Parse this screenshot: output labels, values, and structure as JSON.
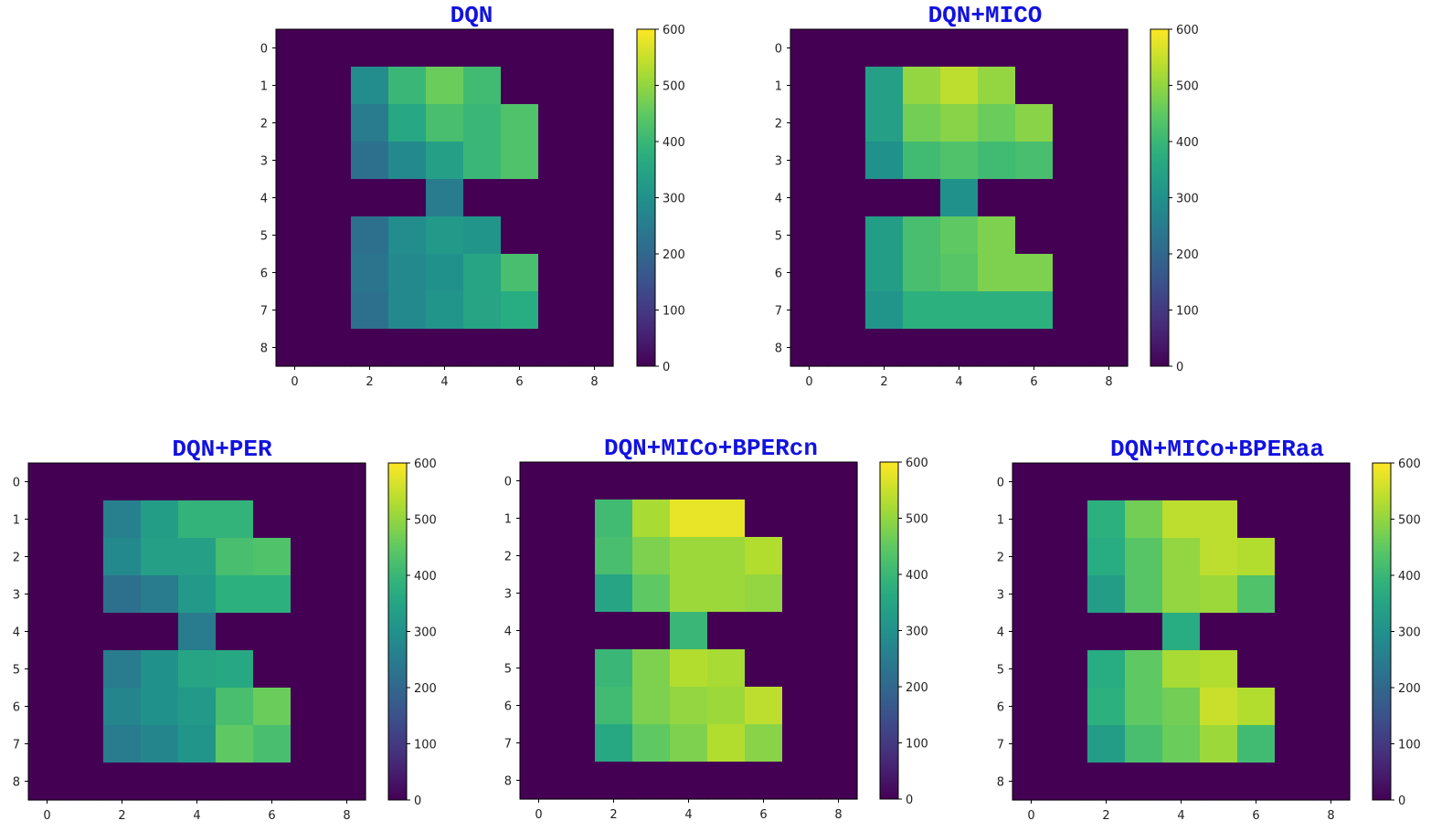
{
  "chart_data": [
    {
      "type": "heatmap",
      "title": "DQN",
      "title_color": "#1212e0",
      "colormap": "viridis",
      "xticks": [
        0,
        2,
        4,
        6,
        8
      ],
      "yticks": [
        0,
        1,
        2,
        3,
        4,
        5,
        6,
        7,
        8
      ],
      "clim": [
        0,
        600
      ],
      "colorbar_ticks": [
        0,
        100,
        200,
        300,
        400,
        500,
        600
      ],
      "values": [
        [
          0,
          0,
          0,
          0,
          0,
          0,
          0,
          0,
          0
        ],
        [
          0,
          0,
          290,
          400,
          460,
          410,
          0,
          0,
          0
        ],
        [
          0,
          0,
          250,
          360,
          420,
          400,
          430,
          0,
          0
        ],
        [
          0,
          0,
          220,
          280,
          340,
          400,
          430,
          0,
          0
        ],
        [
          0,
          0,
          0,
          0,
          250,
          0,
          0,
          0,
          0
        ],
        [
          0,
          0,
          220,
          290,
          320,
          310,
          0,
          0,
          0
        ],
        [
          0,
          0,
          230,
          280,
          300,
          350,
          420,
          0,
          0
        ],
        [
          0,
          0,
          220,
          280,
          310,
          350,
          370,
          0,
          0
        ],
        [
          0,
          0,
          0,
          0,
          0,
          0,
          0,
          0,
          0
        ]
      ]
    },
    {
      "type": "heatmap",
      "title": "DQN+MICO",
      "title_color": "#1212e0",
      "colormap": "viridis",
      "xticks": [
        0,
        2,
        4,
        6,
        8
      ],
      "yticks": [
        0,
        1,
        2,
        3,
        4,
        5,
        6,
        7,
        8
      ],
      "clim": [
        0,
        600
      ],
      "colorbar_ticks": [
        0,
        100,
        200,
        300,
        400,
        500,
        600
      ],
      "values": [
        [
          0,
          0,
          0,
          0,
          0,
          0,
          0,
          0,
          0
        ],
        [
          0,
          0,
          340,
          500,
          540,
          500,
          0,
          0,
          0
        ],
        [
          0,
          0,
          340,
          470,
          490,
          460,
          490,
          0,
          0
        ],
        [
          0,
          0,
          300,
          410,
          430,
          410,
          420,
          0,
          0
        ],
        [
          0,
          0,
          0,
          0,
          300,
          0,
          0,
          0,
          0
        ],
        [
          0,
          0,
          330,
          420,
          450,
          480,
          0,
          0,
          0
        ],
        [
          0,
          0,
          330,
          420,
          440,
          480,
          480,
          0,
          0
        ],
        [
          0,
          0,
          310,
          380,
          380,
          380,
          380,
          0,
          0
        ],
        [
          0,
          0,
          0,
          0,
          0,
          0,
          0,
          0,
          0
        ]
      ]
    },
    {
      "type": "heatmap",
      "title": "DQN+PER",
      "title_color": "#1212e0",
      "colormap": "viridis",
      "xticks": [
        0,
        2,
        4,
        6,
        8
      ],
      "yticks": [
        0,
        1,
        2,
        3,
        4,
        5,
        6,
        7,
        8
      ],
      "clim": [
        0,
        600
      ],
      "colorbar_ticks": [
        0,
        100,
        200,
        300,
        400,
        500,
        600
      ],
      "values": [
        [
          0,
          0,
          0,
          0,
          0,
          0,
          0,
          0,
          0
        ],
        [
          0,
          0,
          260,
          330,
          390,
          390,
          0,
          0,
          0
        ],
        [
          0,
          0,
          280,
          340,
          340,
          420,
          430,
          0,
          0
        ],
        [
          0,
          0,
          220,
          250,
          320,
          380,
          380,
          0,
          0
        ],
        [
          0,
          0,
          0,
          0,
          250,
          0,
          0,
          0,
          0
        ],
        [
          0,
          0,
          250,
          300,
          350,
          360,
          0,
          0,
          0
        ],
        [
          0,
          0,
          270,
          300,
          320,
          420,
          460,
          0,
          0
        ],
        [
          0,
          0,
          250,
          270,
          310,
          450,
          420,
          0,
          0
        ],
        [
          0,
          0,
          0,
          0,
          0,
          0,
          0,
          0,
          0
        ]
      ]
    },
    {
      "type": "heatmap",
      "title": "DQN+MICo+BPERcn",
      "title_color": "#1212e0",
      "colormap": "viridis",
      "xticks": [
        0,
        2,
        4,
        6,
        8
      ],
      "yticks": [
        0,
        1,
        2,
        3,
        4,
        5,
        6,
        7,
        8
      ],
      "clim": [
        0,
        600
      ],
      "colorbar_ticks": [
        0,
        100,
        200,
        300,
        400,
        500,
        600
      ],
      "values": [
        [
          0,
          0,
          0,
          0,
          0,
          0,
          0,
          0,
          0
        ],
        [
          0,
          0,
          410,
          520,
          580,
          580,
          0,
          0,
          0
        ],
        [
          0,
          0,
          420,
          480,
          510,
          510,
          530,
          0,
          0
        ],
        [
          0,
          0,
          350,
          450,
          510,
          510,
          500,
          0,
          0
        ],
        [
          0,
          0,
          0,
          0,
          400,
          0,
          0,
          0,
          0
        ],
        [
          0,
          0,
          400,
          480,
          530,
          520,
          0,
          0,
          0
        ],
        [
          0,
          0,
          410,
          480,
          500,
          510,
          540,
          0,
          0
        ],
        [
          0,
          0,
          360,
          450,
          480,
          530,
          490,
          0,
          0
        ],
        [
          0,
          0,
          0,
          0,
          0,
          0,
          0,
          0,
          0
        ]
      ]
    },
    {
      "type": "heatmap",
      "title": "DQN+MICo+BPERaa",
      "title_color": "#1212e0",
      "colormap": "viridis",
      "xticks": [
        0,
        2,
        4,
        6,
        8
      ],
      "yticks": [
        0,
        1,
        2,
        3,
        4,
        5,
        6,
        7,
        8
      ],
      "clim": [
        0,
        600
      ],
      "colorbar_ticks": [
        0,
        100,
        200,
        300,
        400,
        500,
        600
      ],
      "values": [
        [
          0,
          0,
          0,
          0,
          0,
          0,
          0,
          0,
          0
        ],
        [
          0,
          0,
          380,
          470,
          540,
          540,
          0,
          0,
          0
        ],
        [
          0,
          0,
          370,
          440,
          500,
          540,
          530,
          0,
          0
        ],
        [
          0,
          0,
          330,
          440,
          500,
          510,
          430,
          0,
          0
        ],
        [
          0,
          0,
          0,
          0,
          370,
          0,
          0,
          0,
          0
        ],
        [
          0,
          0,
          370,
          450,
          520,
          530,
          0,
          0,
          0
        ],
        [
          0,
          0,
          380,
          450,
          470,
          550,
          530,
          0,
          0
        ],
        [
          0,
          0,
          330,
          420,
          460,
          510,
          410,
          0,
          0
        ],
        [
          0,
          0,
          0,
          0,
          0,
          0,
          0,
          0,
          0
        ]
      ]
    }
  ]
}
